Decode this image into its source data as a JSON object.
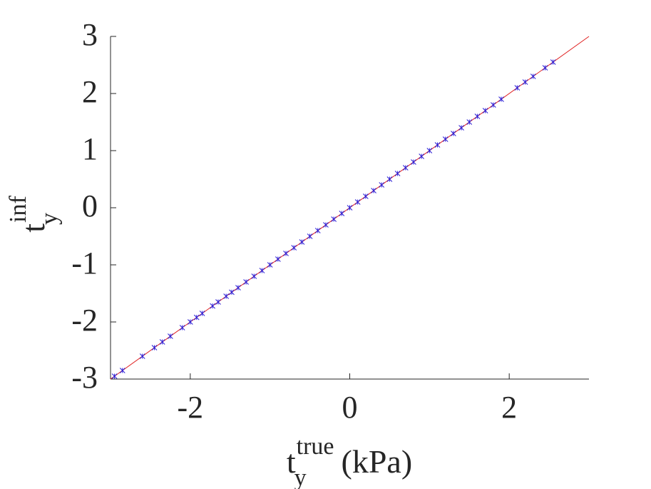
{
  "chart_data": {
    "type": "scatter",
    "xlabel": {
      "base": "t",
      "sub": "y",
      "sup": "true",
      "unit": "(kPa)"
    },
    "ylabel": {
      "base": "t",
      "sub": "y",
      "sup": "inf"
    },
    "xlim": [
      -3,
      3
    ],
    "ylim": [
      -3,
      3
    ],
    "xticks": [
      -2,
      0,
      2
    ],
    "yticks": [
      -3,
      -2,
      -1,
      0,
      1,
      2,
      3
    ],
    "series": [
      {
        "type": "scatter",
        "color": "#2b1fd6",
        "x": [
          -2.95,
          -2.85,
          -2.6,
          -2.45,
          -2.35,
          -2.25,
          -2.1,
          -2.0,
          -1.92,
          -1.85,
          -1.72,
          -1.65,
          -1.55,
          -1.48,
          -1.4,
          -1.3,
          -1.2,
          -1.1,
          -1.0,
          -0.9,
          -0.8,
          -0.7,
          -0.6,
          -0.5,
          -0.4,
          -0.3,
          -0.2,
          -0.1,
          0,
          0.1,
          0.2,
          0.3,
          0.4,
          0.5,
          0.6,
          0.7,
          0.8,
          0.9,
          1.0,
          1.1,
          1.2,
          1.3,
          1.4,
          1.5,
          1.6,
          1.7,
          1.8,
          1.9,
          2.1,
          2.2,
          2.3,
          2.45,
          2.55
        ],
        "values": [
          -2.95,
          -2.85,
          -2.6,
          -2.45,
          -2.35,
          -2.25,
          -2.1,
          -2.0,
          -1.92,
          -1.85,
          -1.72,
          -1.65,
          -1.55,
          -1.48,
          -1.4,
          -1.3,
          -1.2,
          -1.1,
          -1.0,
          -0.9,
          -0.8,
          -0.7,
          -0.6,
          -0.5,
          -0.4,
          -0.3,
          -0.2,
          -0.1,
          0,
          0.1,
          0.2,
          0.3,
          0.4,
          0.5,
          0.6,
          0.7,
          0.8,
          0.9,
          1.0,
          1.1,
          1.2,
          1.3,
          1.4,
          1.5,
          1.6,
          1.7,
          1.8,
          1.9,
          2.1,
          2.2,
          2.3,
          2.45,
          2.55
        ]
      },
      {
        "type": "line",
        "color": "#e02020",
        "x": [
          -3,
          3
        ],
        "values": [
          -3,
          3
        ]
      }
    ]
  }
}
